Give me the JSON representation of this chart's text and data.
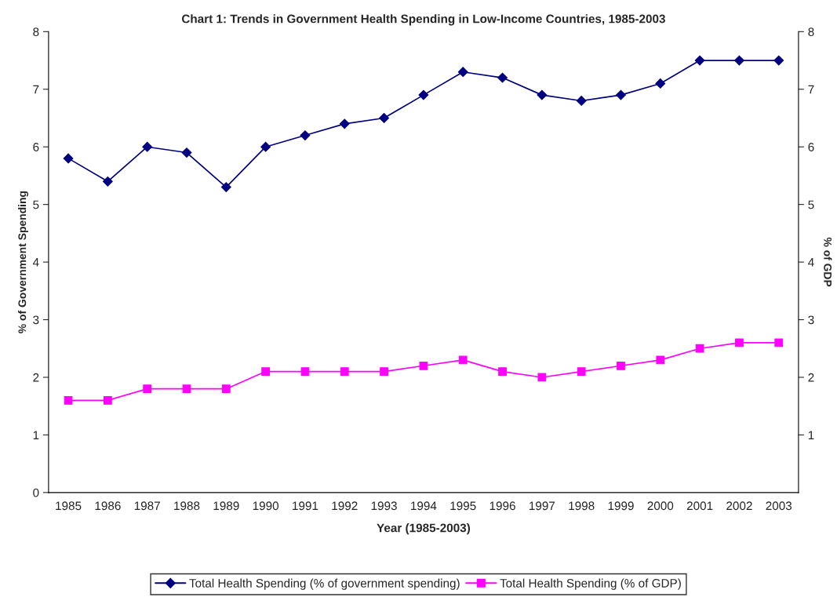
{
  "chart_data": {
    "type": "line",
    "title": "Chart 1: Trends in Government Health Spending in Low-Income Countries, 1985-2003",
    "xlabel": "Year (1985-2003)",
    "ylabel": "% of Government Spending",
    "y2label": "% of GDP",
    "categories": [
      "1985",
      "1986",
      "1987",
      "1988",
      "1989",
      "1990",
      "1991",
      "1992",
      "1993",
      "1994",
      "1995",
      "1996",
      "1997",
      "1998",
      "1999",
      "2000",
      "2001",
      "2002",
      "2003"
    ],
    "series": [
      {
        "name": "Total Health Spending (% of government spending)",
        "color": "#000080",
        "marker": "diamond",
        "values": [
          5.8,
          5.4,
          6.0,
          5.9,
          5.3,
          6.0,
          6.2,
          6.4,
          6.5,
          6.9,
          7.3,
          7.2,
          6.9,
          6.8,
          6.9,
          7.1,
          7.5,
          7.5,
          7.5
        ]
      },
      {
        "name": "Total Health Spending (% of GDP)",
        "color": "#ff00ff",
        "marker": "square",
        "values": [
          1.6,
          1.6,
          1.8,
          1.8,
          1.8,
          2.1,
          2.1,
          2.1,
          2.1,
          2.2,
          2.3,
          2.1,
          2.0,
          2.1,
          2.2,
          2.3,
          2.5,
          2.6,
          2.6
        ]
      }
    ],
    "ylim": [
      0,
      8
    ],
    "yticks": [
      0,
      1,
      2,
      3,
      4,
      5,
      6,
      7,
      8
    ],
    "y2lim": [
      0,
      8
    ],
    "y2ticks": [
      1,
      2,
      3,
      4,
      5,
      6,
      7,
      8
    ],
    "grid": false,
    "legend": "bottom",
    "line_style": "solid"
  }
}
